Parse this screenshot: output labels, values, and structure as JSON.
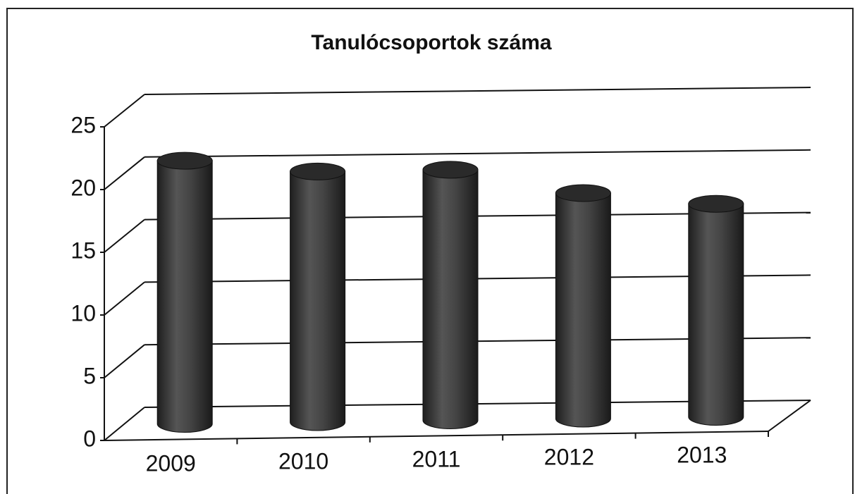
{
  "chart_data": {
    "type": "bar",
    "title": "Tanulócsoportok száma",
    "categories": [
      "2009",
      "2010",
      "2011",
      "2012",
      "2013"
    ],
    "values": [
      21,
      20,
      20,
      18,
      17
    ],
    "color": "#3a3a3a",
    "ylim": [
      0,
      25
    ],
    "yticks": [
      0,
      5,
      10,
      15,
      20,
      25
    ],
    "grid": true
  }
}
